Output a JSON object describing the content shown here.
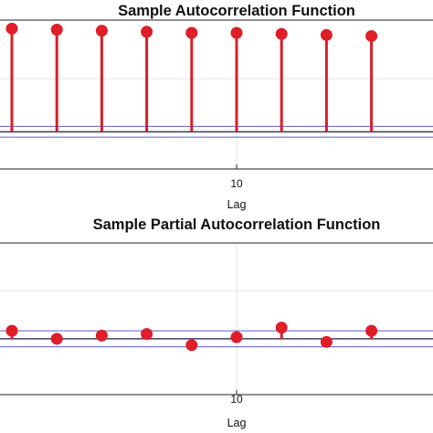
{
  "chart_data": [
    {
      "type": "stem",
      "title": "Sample Autocorrelation Function",
      "xlabel": "Lag",
      "ylabel": "",
      "x_ticks": [
        10
      ],
      "x": [
        0,
        2,
        4,
        6,
        8,
        10,
        12,
        14,
        16
      ],
      "values": [
        0.97,
        0.96,
        0.95,
        0.94,
        0.93,
        0.93,
        0.92,
        0.91,
        0.9
      ],
      "confidence_bounds": [
        0.05,
        -0.05
      ],
      "xlim": [
        0,
        16.6
      ],
      "ylim": [
        -0.35,
        1.05
      ],
      "grid": true,
      "colors": {
        "stem": "#d81f26",
        "marker": "#e11d2a",
        "bounds": "#5b5bd6",
        "zero": "#1a1a3a",
        "axis": "#222222",
        "grid": "#e6e6e6"
      }
    },
    {
      "type": "stem",
      "title": "Sample Partial Autocorrelation Function",
      "xlabel": "Lag",
      "ylabel": "",
      "x_ticks": [
        10
      ],
      "x": [
        0,
        2,
        4,
        6,
        8,
        10,
        12,
        14,
        16
      ],
      "values": [
        0.05,
        0.0,
        0.02,
        0.03,
        -0.04,
        0.01,
        0.07,
        -0.02,
        0.05
      ],
      "confidence_bounds": [
        0.05,
        -0.05
      ],
      "xlim": [
        0,
        16.6
      ],
      "ylim": [
        -0.35,
        0.6
      ],
      "grid": true,
      "colors": {
        "stem": "#d81f26",
        "marker": "#e11d2a",
        "bounds": "#5b5bd6",
        "zero": "#1a1a3a",
        "axis": "#222222",
        "grid": "#e6e6e6"
      }
    }
  ]
}
